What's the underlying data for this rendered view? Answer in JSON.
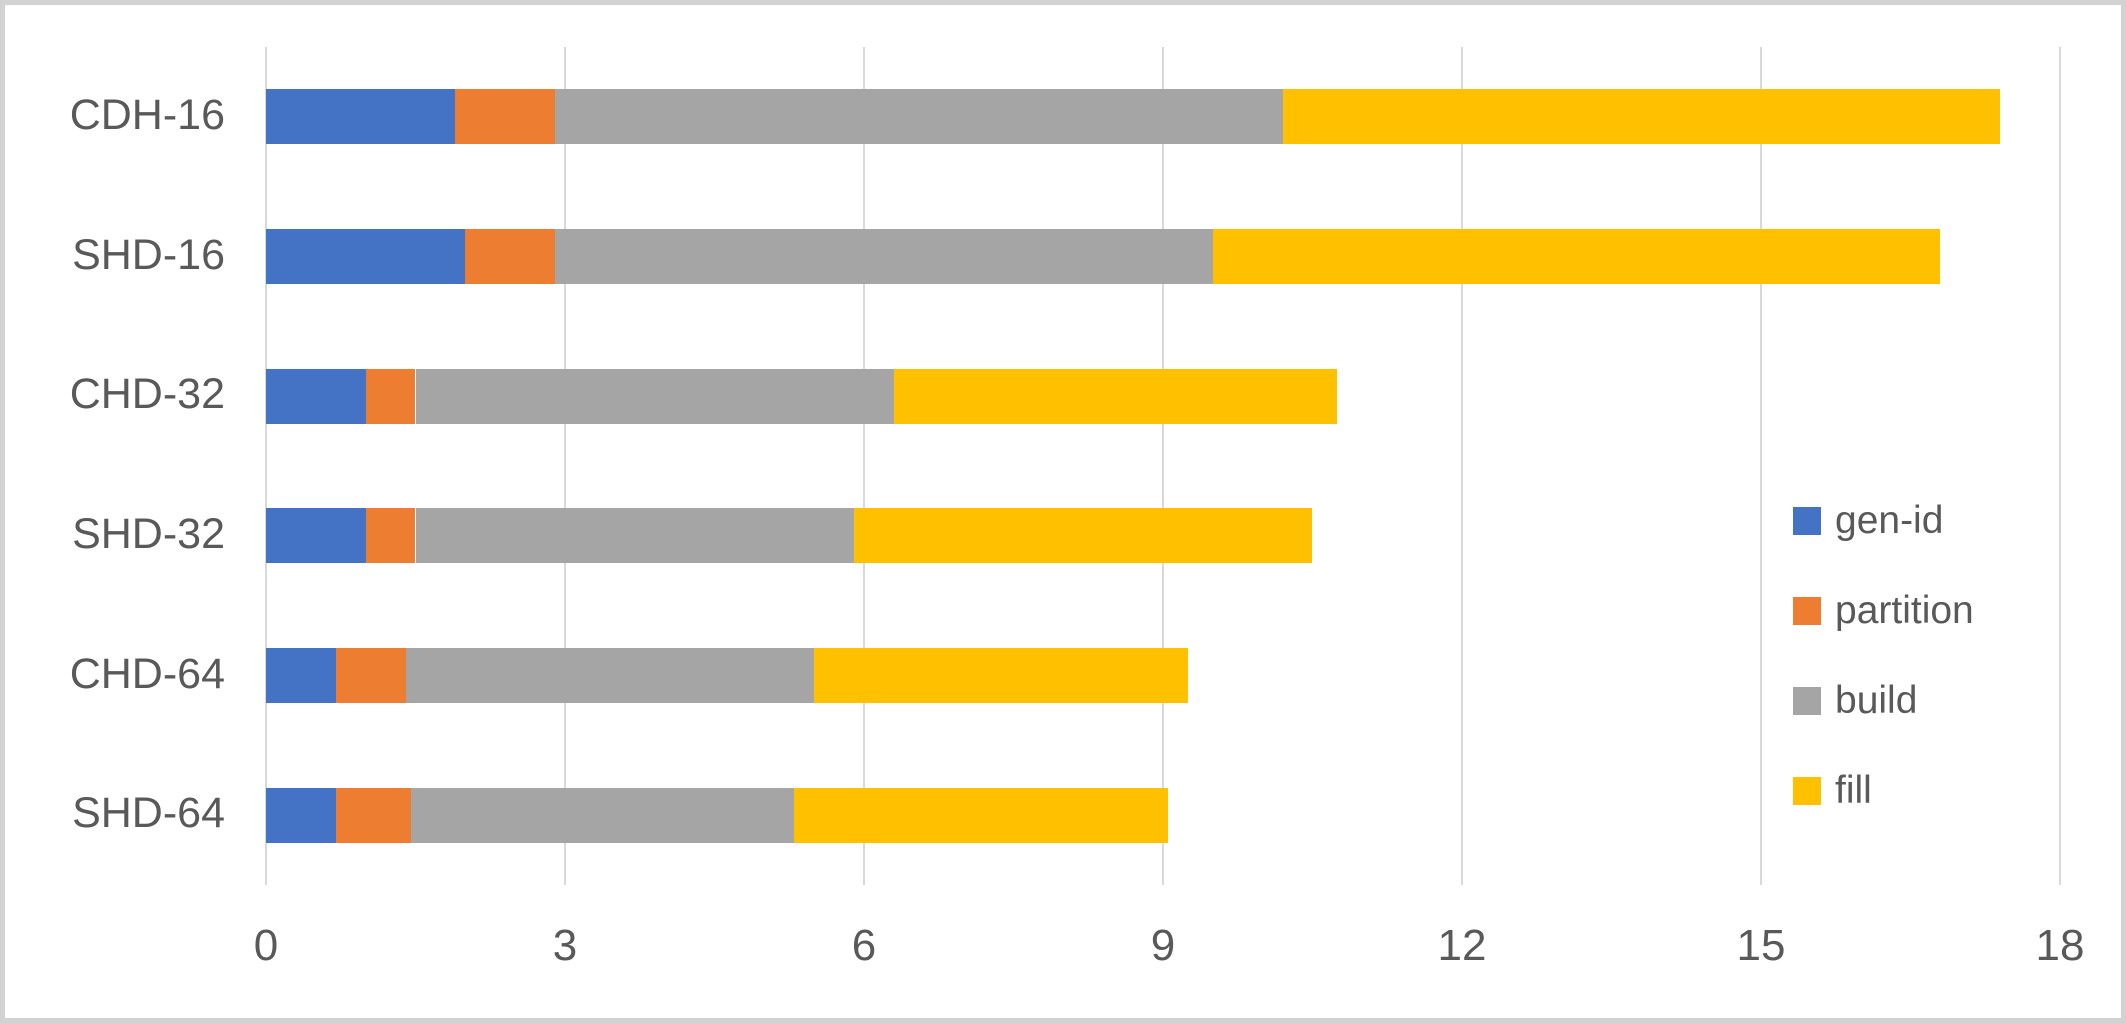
{
  "chart_data": {
    "type": "bar",
    "orientation": "horizontal",
    "stacked": true,
    "title": "",
    "xlabel": "",
    "ylabel": "",
    "categories": [
      "CDH-16",
      "SHD-16",
      "CHD-32",
      "SHD-32",
      "CHD-64",
      "SHD-64"
    ],
    "series": [
      {
        "name": "gen-id",
        "color": "#4472C4",
        "values": [
          1.9,
          2.0,
          1.0,
          1.0,
          0.7,
          0.7
        ]
      },
      {
        "name": "partition",
        "color": "#ED7D31",
        "values": [
          1.0,
          0.9,
          0.5,
          0.5,
          0.7,
          0.75
        ]
      },
      {
        "name": "build",
        "color": "#A5A5A5",
        "values": [
          7.3,
          6.6,
          4.8,
          4.4,
          4.1,
          3.85
        ]
      },
      {
        "name": "fill",
        "color": "#FFC000",
        "values": [
          7.2,
          7.3,
          4.45,
          4.6,
          3.75,
          3.75
        ]
      }
    ],
    "totals": [
      17.4,
      16.8,
      10.75,
      10.5,
      9.25,
      9.05
    ],
    "xlim": [
      0,
      18
    ],
    "xticks": [
      0,
      3,
      6,
      9,
      12,
      15,
      18
    ],
    "grid": true,
    "legend_position": "right",
    "colors": {
      "gridline": "#d9d9d9",
      "text": "#595959",
      "background": "#ffffff",
      "frame_border": "#d2d2d2"
    }
  }
}
